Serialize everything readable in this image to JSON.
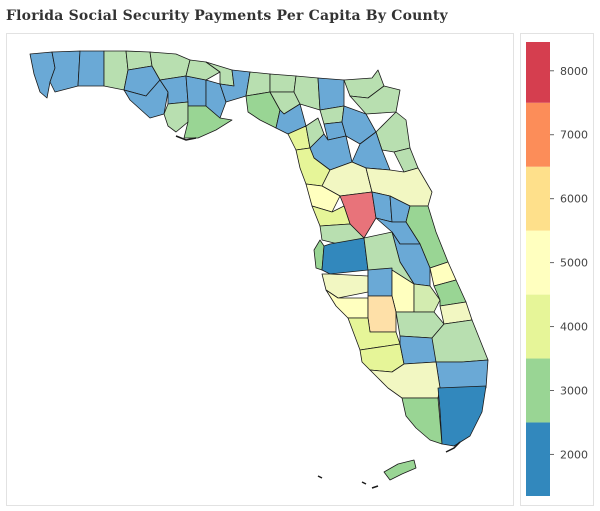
{
  "title": "Florida Social Security Payments Per Capita By County",
  "legend": {
    "ticks": [
      "2000",
      "3000",
      "4000",
      "5000",
      "6000",
      "7000",
      "8000"
    ],
    "colors": [
      "#3288bd",
      "#99d594",
      "#e6f598",
      "#ffffbf",
      "#fee08b",
      "#fc8d59",
      "#d53e4f"
    ]
  },
  "map": {
    "outline_color": "#1a1a1a",
    "palette": {
      "blue": "#6aa9d6",
      "dark_blue": "#3288bd",
      "green": "#99d594",
      "light_green": "#b8dfb0",
      "pale_green": "#d3ecb0",
      "yellow_green": "#e6f598",
      "pale_yellow": "#f2f7c2",
      "cream": "#ffffbf",
      "peach": "#fee0a8",
      "red": "#e8737a"
    }
  }
}
